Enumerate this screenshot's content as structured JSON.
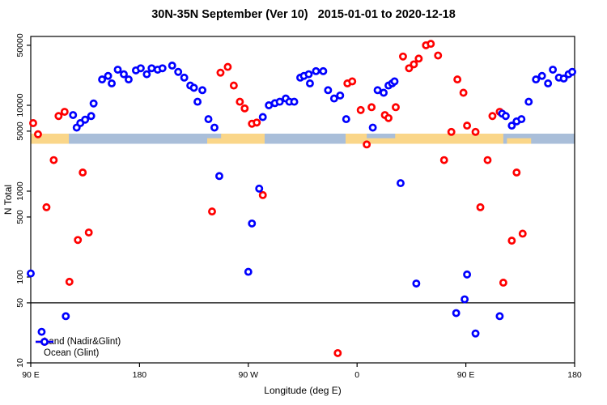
{
  "title": "30N-35N September (Ver 10)   2015-01-01 to 2020-12-18",
  "colors": {
    "land_points": "#ff0000",
    "ocean_points": "#0000ff",
    "strip_ocean": "#a9bed9",
    "strip_land": "#fad689",
    "axis": "#000000"
  },
  "legend": {
    "items": [
      {
        "label": "Land (Nadir&Glint)",
        "color": "#ff0000"
      },
      {
        "label": "Ocean (Glint)",
        "color": "#0000ff"
      }
    ]
  },
  "chart_data": {
    "type": "scatter",
    "title": "30N-35N September (Ver 10)   2015-01-01 to 2020-12-18",
    "xlabel": "Longitude (deg E)",
    "ylabel": "N Total",
    "x_axis": {
      "note": "longitude axis wraps eastward from 90E; positions stored as deg 90..540",
      "range": [
        90,
        540
      ],
      "ticks": [
        {
          "pos": 90,
          "label": "90 E"
        },
        {
          "pos": 180,
          "label": "180"
        },
        {
          "pos": 270,
          "label": "90 W"
        },
        {
          "pos": 360,
          "label": "0"
        },
        {
          "pos": 450,
          "label": "90 E"
        },
        {
          "pos": 540,
          "label": "180"
        }
      ]
    },
    "y_axis": {
      "scale": "log",
      "range": [
        10,
        63000
      ],
      "ticks": [
        50000,
        10000,
        5000,
        1000,
        500,
        100,
        50,
        10
      ]
    },
    "reference_line_y": 50,
    "map_strip": {
      "description": "land/ocean strip for 30N-35N drawn near N=4000",
      "land_segments": [
        [
          90,
          121.5
        ],
        [
          236,
          283.5
        ],
        [
          350.5,
          481
        ]
      ],
      "ocean_top_notches": [
        [
          236,
          247.5
        ],
        [
          368,
          391.5
        ]
      ],
      "land_bottom_patches": [
        [
          484,
          504
        ]
      ]
    },
    "series": [
      {
        "name": "Land (Nadir&Glint)",
        "color": "#ff0000",
        "points": [
          [
            92,
            6200
          ],
          [
            96,
            4600
          ],
          [
            103,
            650
          ],
          [
            109,
            2300
          ],
          [
            113,
            7500
          ],
          [
            118,
            8400
          ],
          [
            122,
            88
          ],
          [
            129,
            270
          ],
          [
            133,
            1650
          ],
          [
            138,
            330
          ],
          [
            240,
            580
          ],
          [
            247,
            24000
          ],
          [
            253,
            28000
          ],
          [
            258,
            17000
          ],
          [
            263,
            11000
          ],
          [
            267,
            9200
          ],
          [
            273,
            6100
          ],
          [
            277,
            6300
          ],
          [
            282,
            900
          ],
          [
            344,
            13
          ],
          [
            352,
            18000
          ],
          [
            356,
            19000
          ],
          [
            363,
            8800
          ],
          [
            368,
            3500
          ],
          [
            372,
            9500
          ],
          [
            383,
            7700
          ],
          [
            386,
            7100
          ],
          [
            392,
            9500
          ],
          [
            398,
            37000
          ],
          [
            403,
            27000
          ],
          [
            407,
            30000
          ],
          [
            411,
            35000
          ],
          [
            417,
            50000
          ],
          [
            421,
            52000
          ],
          [
            427,
            38000
          ],
          [
            432,
            2300
          ],
          [
            438,
            4900
          ],
          [
            443,
            20000
          ],
          [
            448,
            14000
          ],
          [
            451,
            5800
          ],
          [
            458,
            4900
          ],
          [
            462,
            650
          ],
          [
            468,
            2300
          ],
          [
            472,
            7500
          ],
          [
            478,
            8400
          ],
          [
            481,
            86
          ],
          [
            488,
            265
          ],
          [
            492,
            1650
          ],
          [
            497,
            320
          ]
        ]
      },
      {
        "name": "Ocean (Glint)",
        "color": "#0000ff",
        "points": [
          [
            90,
            110
          ],
          [
            99,
            23
          ],
          [
            119,
            35
          ],
          [
            125,
            7700
          ],
          [
            128,
            5500
          ],
          [
            131,
            6200
          ],
          [
            135,
            6800
          ],
          [
            140,
            7500
          ],
          [
            142,
            10500
          ],
          [
            149,
            20000
          ],
          [
            154,
            22000
          ],
          [
            157,
            18000
          ],
          [
            162,
            26000
          ],
          [
            167,
            23000
          ],
          [
            171,
            20000
          ],
          [
            177,
            25500
          ],
          [
            181,
            27000
          ],
          [
            186,
            23000
          ],
          [
            190,
            27000
          ],
          [
            195,
            26000
          ],
          [
            199,
            27000
          ],
          [
            207,
            29000
          ],
          [
            212,
            24500
          ],
          [
            217,
            21000
          ],
          [
            222,
            17000
          ],
          [
            225,
            16000
          ],
          [
            228,
            11000
          ],
          [
            232,
            15000
          ],
          [
            237,
            6900
          ],
          [
            242,
            5500
          ],
          [
            246,
            1500
          ],
          [
            270,
            115
          ],
          [
            273,
            420
          ],
          [
            279,
            1070
          ],
          [
            282,
            7300
          ],
          [
            287,
            10000
          ],
          [
            292,
            10600
          ],
          [
            296,
            11000
          ],
          [
            301,
            12000
          ],
          [
            304,
            11000
          ],
          [
            308,
            11000
          ],
          [
            313,
            21000
          ],
          [
            316,
            22000
          ],
          [
            320,
            23000
          ],
          [
            321,
            18000
          ],
          [
            326,
            25000
          ],
          [
            332,
            25000
          ],
          [
            336,
            15000
          ],
          [
            341,
            12000
          ],
          [
            346,
            13000
          ],
          [
            351,
            6900
          ],
          [
            373,
            5500
          ],
          [
            377,
            15000
          ],
          [
            382,
            14000
          ],
          [
            386,
            17000
          ],
          [
            389,
            18000
          ],
          [
            391,
            19000
          ],
          [
            396,
            1240
          ],
          [
            409,
            84
          ],
          [
            442,
            38
          ],
          [
            449,
            55
          ],
          [
            451,
            107
          ],
          [
            458,
            22
          ],
          [
            478,
            35
          ],
          [
            480,
            8000
          ],
          [
            483,
            7500
          ],
          [
            488,
            5800
          ],
          [
            492,
            6500
          ],
          [
            496,
            6900
          ],
          [
            502,
            11000
          ],
          [
            508,
            20000
          ],
          [
            513,
            22000
          ],
          [
            518,
            18000
          ],
          [
            522,
            26000
          ],
          [
            527,
            21000
          ],
          [
            531,
            20500
          ],
          [
            535,
            23000
          ],
          [
            538,
            24500
          ]
        ]
      }
    ]
  }
}
